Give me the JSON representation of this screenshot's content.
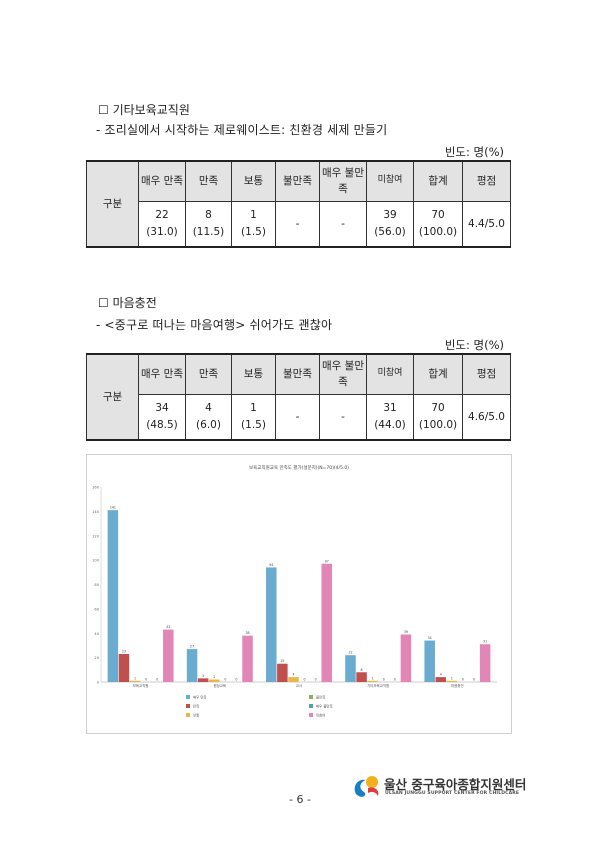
{
  "section1": {
    "title": "☐ 기타보육교직원",
    "subtitle": "- 조리실에서 시작하는 제로웨이스트: 친환경 세제 만들기",
    "unit": "빈도: 명(%)",
    "table": {
      "row_header": "구분",
      "headers": [
        "매우 만족",
        "만족",
        "보통",
        "불만족",
        "매우 불만족",
        "미참여",
        "합계",
        "평점"
      ],
      "cells": [
        [
          "22",
          "(31.0)"
        ],
        [
          "8",
          "(11.5)"
        ],
        [
          "1",
          "(1.5)"
        ],
        [
          "-",
          ""
        ],
        [
          "-",
          ""
        ],
        [
          "39",
          "(56.0)"
        ],
        [
          "70",
          "(100.0)"
        ],
        [
          "4.4/5.0",
          ""
        ]
      ]
    }
  },
  "section2": {
    "title": "☐ 마음충전",
    "subtitle": "- <중구로 떠나는 마음여행> 쉬어가도 괜찮아",
    "unit": "빈도: 명(%)",
    "table": {
      "row_header": "구분",
      "headers": [
        "매우 만족",
        "만족",
        "보통",
        "불만족",
        "매우 불만족",
        "미참여",
        "합계",
        "평점"
      ],
      "cells": [
        [
          "34",
          "(48.5)"
        ],
        [
          "4",
          "(6.0)"
        ],
        [
          "1",
          "(1.5)"
        ],
        [
          "-",
          ""
        ],
        [
          "-",
          ""
        ],
        [
          "31",
          "(44.0)"
        ],
        [
          "70",
          "(100.0)"
        ],
        [
          "4.6/5.0",
          ""
        ]
      ]
    }
  },
  "chart_data": {
    "type": "bar",
    "title": "보육교직원교육 만족도 평가(설문지)(N=70)(4/5.0)",
    "categories": [
      "보육교직원",
      "원장교육",
      "교사",
      "기타보육교직원",
      "마음충전"
    ],
    "series": [
      {
        "name": "매우 만족",
        "color": "#6aaccf",
        "values": [
          141,
          27,
          94,
          22,
          34
        ]
      },
      {
        "name": "만족",
        "color": "#c0504d",
        "values": [
          23,
          3,
          15,
          8,
          4
        ]
      },
      {
        "name": "보통",
        "color": "#e8b64a",
        "values": [
          1,
          2,
          4,
          1,
          1
        ]
      },
      {
        "name": "불만족",
        "color": "#8fae5a",
        "values": [
          0,
          0,
          0,
          0,
          0
        ]
      },
      {
        "name": "매우 불만족",
        "color": "#4aa6a0",
        "values": [
          0,
          0,
          0,
          0,
          0
        ]
      },
      {
        "name": "미참여",
        "color": "#e286b8",
        "values": [
          43,
          38,
          97,
          39,
          31
        ]
      }
    ],
    "ylim": [
      0,
      160
    ],
    "yticks": [
      0,
      20,
      40,
      60,
      80,
      100,
      120,
      140,
      160
    ],
    "grid": false,
    "legend_position": "bottom"
  },
  "footer": {
    "page_number": "- 6 -",
    "logo_text": "울산 중구육아종합지원센터",
    "logo_subtext": "ULSAN JUNGGU SUPPORT CENTER FOR CHILDCARE",
    "logo_colors": {
      "blue": "#1a7fc1",
      "yellow": "#f2b01e",
      "red": "#e23b3b"
    }
  }
}
